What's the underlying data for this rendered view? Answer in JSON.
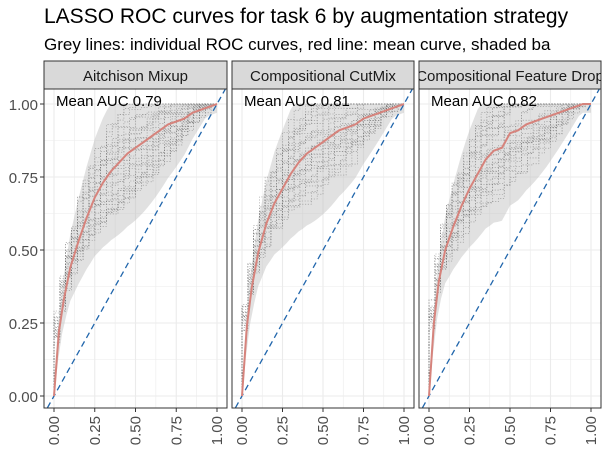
{
  "title": "LASSO ROC curves for task 6 by augmentation strategy",
  "subtitle": "Grey lines: individual ROC curves, red line: mean curve, shaded ba",
  "colors": {
    "individual_curves": "#7a7a7a",
    "mean_curve": "#d6837c",
    "band": "#bdbdbd",
    "diagonal": "#2166ac",
    "panel_border": "#333333",
    "strip_fill": "#d9d9d9",
    "grid": "#ebebeb",
    "axis_text": "#4d4d4d"
  },
  "chart_data": {
    "type": "line",
    "x_range": [
      0,
      1
    ],
    "y_range": [
      0,
      1
    ],
    "x_ticks": [
      "0.00",
      "0.25",
      "0.50",
      "0.75",
      "1.00"
    ],
    "y_ticks": [
      "0.00",
      "0.25",
      "0.50",
      "0.75",
      "1.00"
    ],
    "grid": true,
    "diagonal_reference": true,
    "panels": [
      {
        "strip": "Aitchison Mixup",
        "annotation": "Mean AUC 0.79",
        "mean_curve": {
          "x": [
            0,
            0.03,
            0.06,
            0.1,
            0.15,
            0.2,
            0.25,
            0.3,
            0.35,
            0.4,
            0.45,
            0.5,
            0.55,
            0.6,
            0.65,
            0.7,
            0.75,
            0.8,
            0.85,
            0.9,
            0.95,
            1.0
          ],
          "y": [
            0,
            0.22,
            0.33,
            0.44,
            0.53,
            0.61,
            0.68,
            0.73,
            0.77,
            0.8,
            0.83,
            0.85,
            0.87,
            0.89,
            0.91,
            0.93,
            0.94,
            0.95,
            0.97,
            0.98,
            0.99,
            1.0
          ]
        }
      },
      {
        "strip": "Compositional CutMix",
        "annotation": "Mean AUC 0.81",
        "mean_curve": {
          "x": [
            0,
            0.03,
            0.06,
            0.1,
            0.15,
            0.2,
            0.25,
            0.3,
            0.35,
            0.4,
            0.45,
            0.5,
            0.55,
            0.6,
            0.65,
            0.7,
            0.75,
            0.8,
            0.85,
            0.9,
            0.95,
            1.0
          ],
          "y": [
            0,
            0.24,
            0.37,
            0.49,
            0.59,
            0.66,
            0.71,
            0.76,
            0.8,
            0.83,
            0.85,
            0.87,
            0.89,
            0.91,
            0.92,
            0.93,
            0.95,
            0.96,
            0.97,
            0.98,
            0.99,
            1.0
          ]
        }
      },
      {
        "strip": "Compositional Feature Drop",
        "annotation": "Mean AUC 0.82",
        "mean_curve": {
          "x": [
            0,
            0.03,
            0.06,
            0.1,
            0.15,
            0.2,
            0.25,
            0.3,
            0.35,
            0.4,
            0.45,
            0.5,
            0.55,
            0.6,
            0.65,
            0.7,
            0.75,
            0.8,
            0.85,
            0.9,
            0.95,
            1.0
          ],
          "y": [
            0,
            0.25,
            0.39,
            0.5,
            0.58,
            0.65,
            0.71,
            0.76,
            0.81,
            0.84,
            0.85,
            0.9,
            0.91,
            0.93,
            0.94,
            0.95,
            0.96,
            0.97,
            0.98,
            0.99,
            1.0,
            1.0
          ]
        }
      }
    ]
  }
}
